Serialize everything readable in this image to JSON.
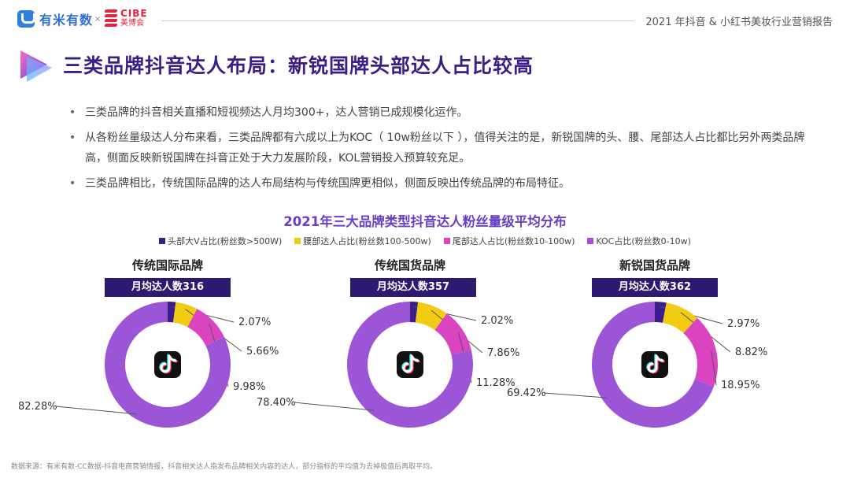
{
  "header": {
    "logo_left": "有米有数",
    "logo_cross": "×",
    "logo_right_top": "CIBE",
    "logo_right_bottom": "美博会",
    "report_title": "2021 年抖音 & 小红书美妆行业营销报告"
  },
  "page_title": "三类品牌抖音达人布局：新锐国牌头部达人占比较高",
  "bullets": [
    "三类品牌的抖音相关直播和短视频达人月均300+，达人营销已成规模化运作。",
    "从各粉丝量级达人分布来看，三类品牌都有六成以上为KOC（ 10w粉丝以下 ），值得关注的是，新锐国牌的头、腰、尾部达人占比都比另外两类品牌高，侧面反映新锐国牌在抖音正处于大力发展阶段，KOL营销投入预算较充足。",
    "三类品牌相比，传统国际品牌的达人布局结构与传统国牌更相似，侧面反映出传统品牌的布局特征。"
  ],
  "chart_data": {
    "type": "pie",
    "title": "2021年三大品牌类型抖音达人粉丝量级平均分布",
    "legend_position": "top",
    "series_names": [
      "头部大V占比(粉丝数>500W)",
      "腰部达人占比(粉丝数100-500w)",
      "尾部达人占比(粉丝数10-100w)",
      "KOC占比(粉丝数0-10w)"
    ],
    "colors": [
      "#3d1c8c",
      "#f2cc12",
      "#da44c1",
      "#9b55d6"
    ],
    "charts": [
      {
        "name": "传统国际品牌",
        "badge": "月均达人数316",
        "values": [
          2.07,
          5.66,
          9.98,
          82.28
        ],
        "labels": [
          "2.07%",
          "5.66%",
          "9.98%",
          "82.28%"
        ]
      },
      {
        "name": "传统国货品牌",
        "badge": "月均达人数357",
        "values": [
          2.02,
          7.86,
          11.28,
          78.4
        ],
        "labels": [
          "2.02%",
          "7.86%",
          "11.28%",
          "78.40%"
        ]
      },
      {
        "name": "新锐国货品牌",
        "badge": "月均达人数362",
        "values": [
          2.97,
          8.82,
          18.95,
          69.42
        ],
        "labels": [
          "2.97%",
          "8.82%",
          "18.95%",
          "69.42%"
        ]
      }
    ],
    "center_icon": "tiktok-icon"
  },
  "source": "数据来源：有米有数-CC数据-抖音电商营销情报，抖音相关达人指发布品牌相关内容的达人，部分指标的平均值为去掉极值后再取平均。"
}
